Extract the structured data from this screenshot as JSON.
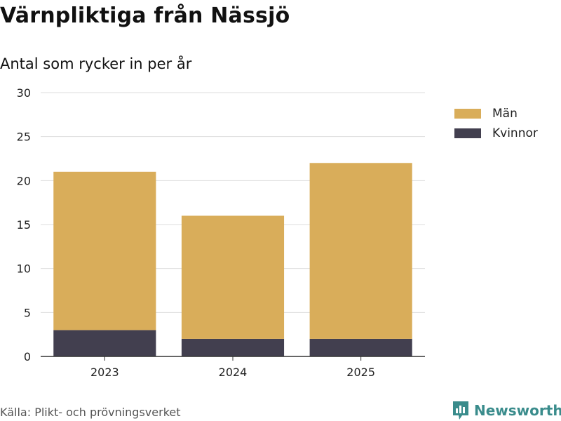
{
  "header": {
    "title": "Värnpliktiga från Nässjö",
    "subtitle": "Antal som rycker in per år"
  },
  "footer": {
    "source": "Källa: Plikt- och prövningsverket",
    "brand": "Newsworthy",
    "brand_icon": "bar-chart-badge-icon"
  },
  "colors": {
    "men": "#d9ad5a",
    "women": "#423f4f",
    "grid": "#dddddd",
    "axis": "#333333",
    "brand": "#3a8c8c"
  },
  "chart_data": {
    "type": "bar",
    "stacked": true,
    "title": "Värnpliktiga från Nässjö",
    "subtitle": "Antal som rycker in per år",
    "categories": [
      "2023",
      "2024",
      "2025"
    ],
    "series": [
      {
        "name": "Kvinnor",
        "values": [
          3,
          2,
          2
        ]
      },
      {
        "name": "Män",
        "values": [
          18,
          14,
          20
        ]
      }
    ],
    "totals": [
      21,
      16,
      22
    ],
    "xlabel": "",
    "ylabel": "",
    "ylim": [
      0,
      30
    ],
    "yticks": [
      "0",
      "5",
      "10",
      "15",
      "20",
      "25",
      "30"
    ],
    "grid": true,
    "legend_placement": "right",
    "legend_order": [
      "Män",
      "Kvinnor"
    ]
  }
}
